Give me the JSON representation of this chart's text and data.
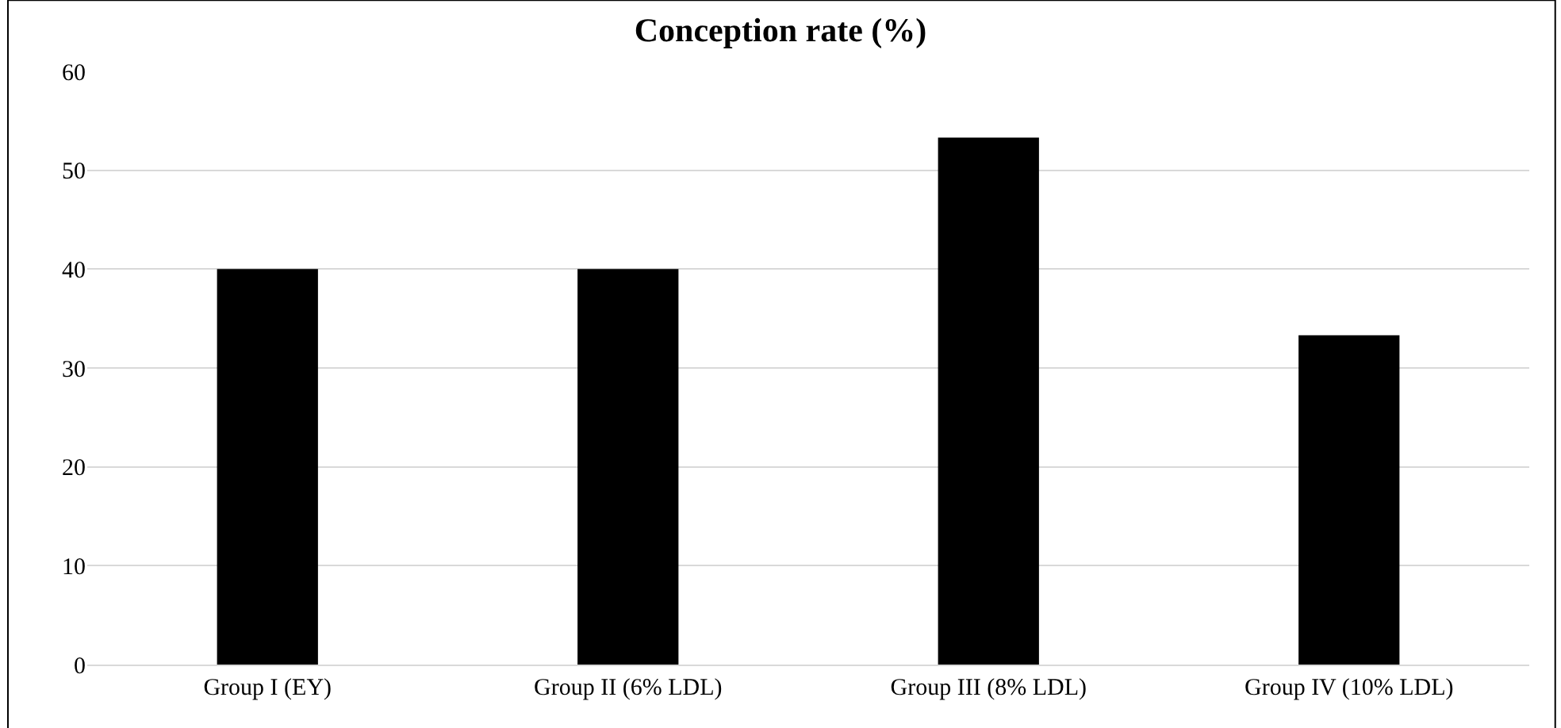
{
  "chart_data": {
    "type": "bar",
    "title": "Conception rate (%)",
    "categories": [
      "Group I (EY)",
      "Group II (6% LDL)",
      "Group III (8% LDL)",
      "Group IV (10% LDL)"
    ],
    "values": [
      40,
      40,
      53.3,
      33.3
    ],
    "color": "#000000",
    "ylim": [
      0,
      60
    ],
    "yticks": [
      0,
      10,
      20,
      30,
      40,
      50,
      60
    ],
    "grid": "y"
  }
}
